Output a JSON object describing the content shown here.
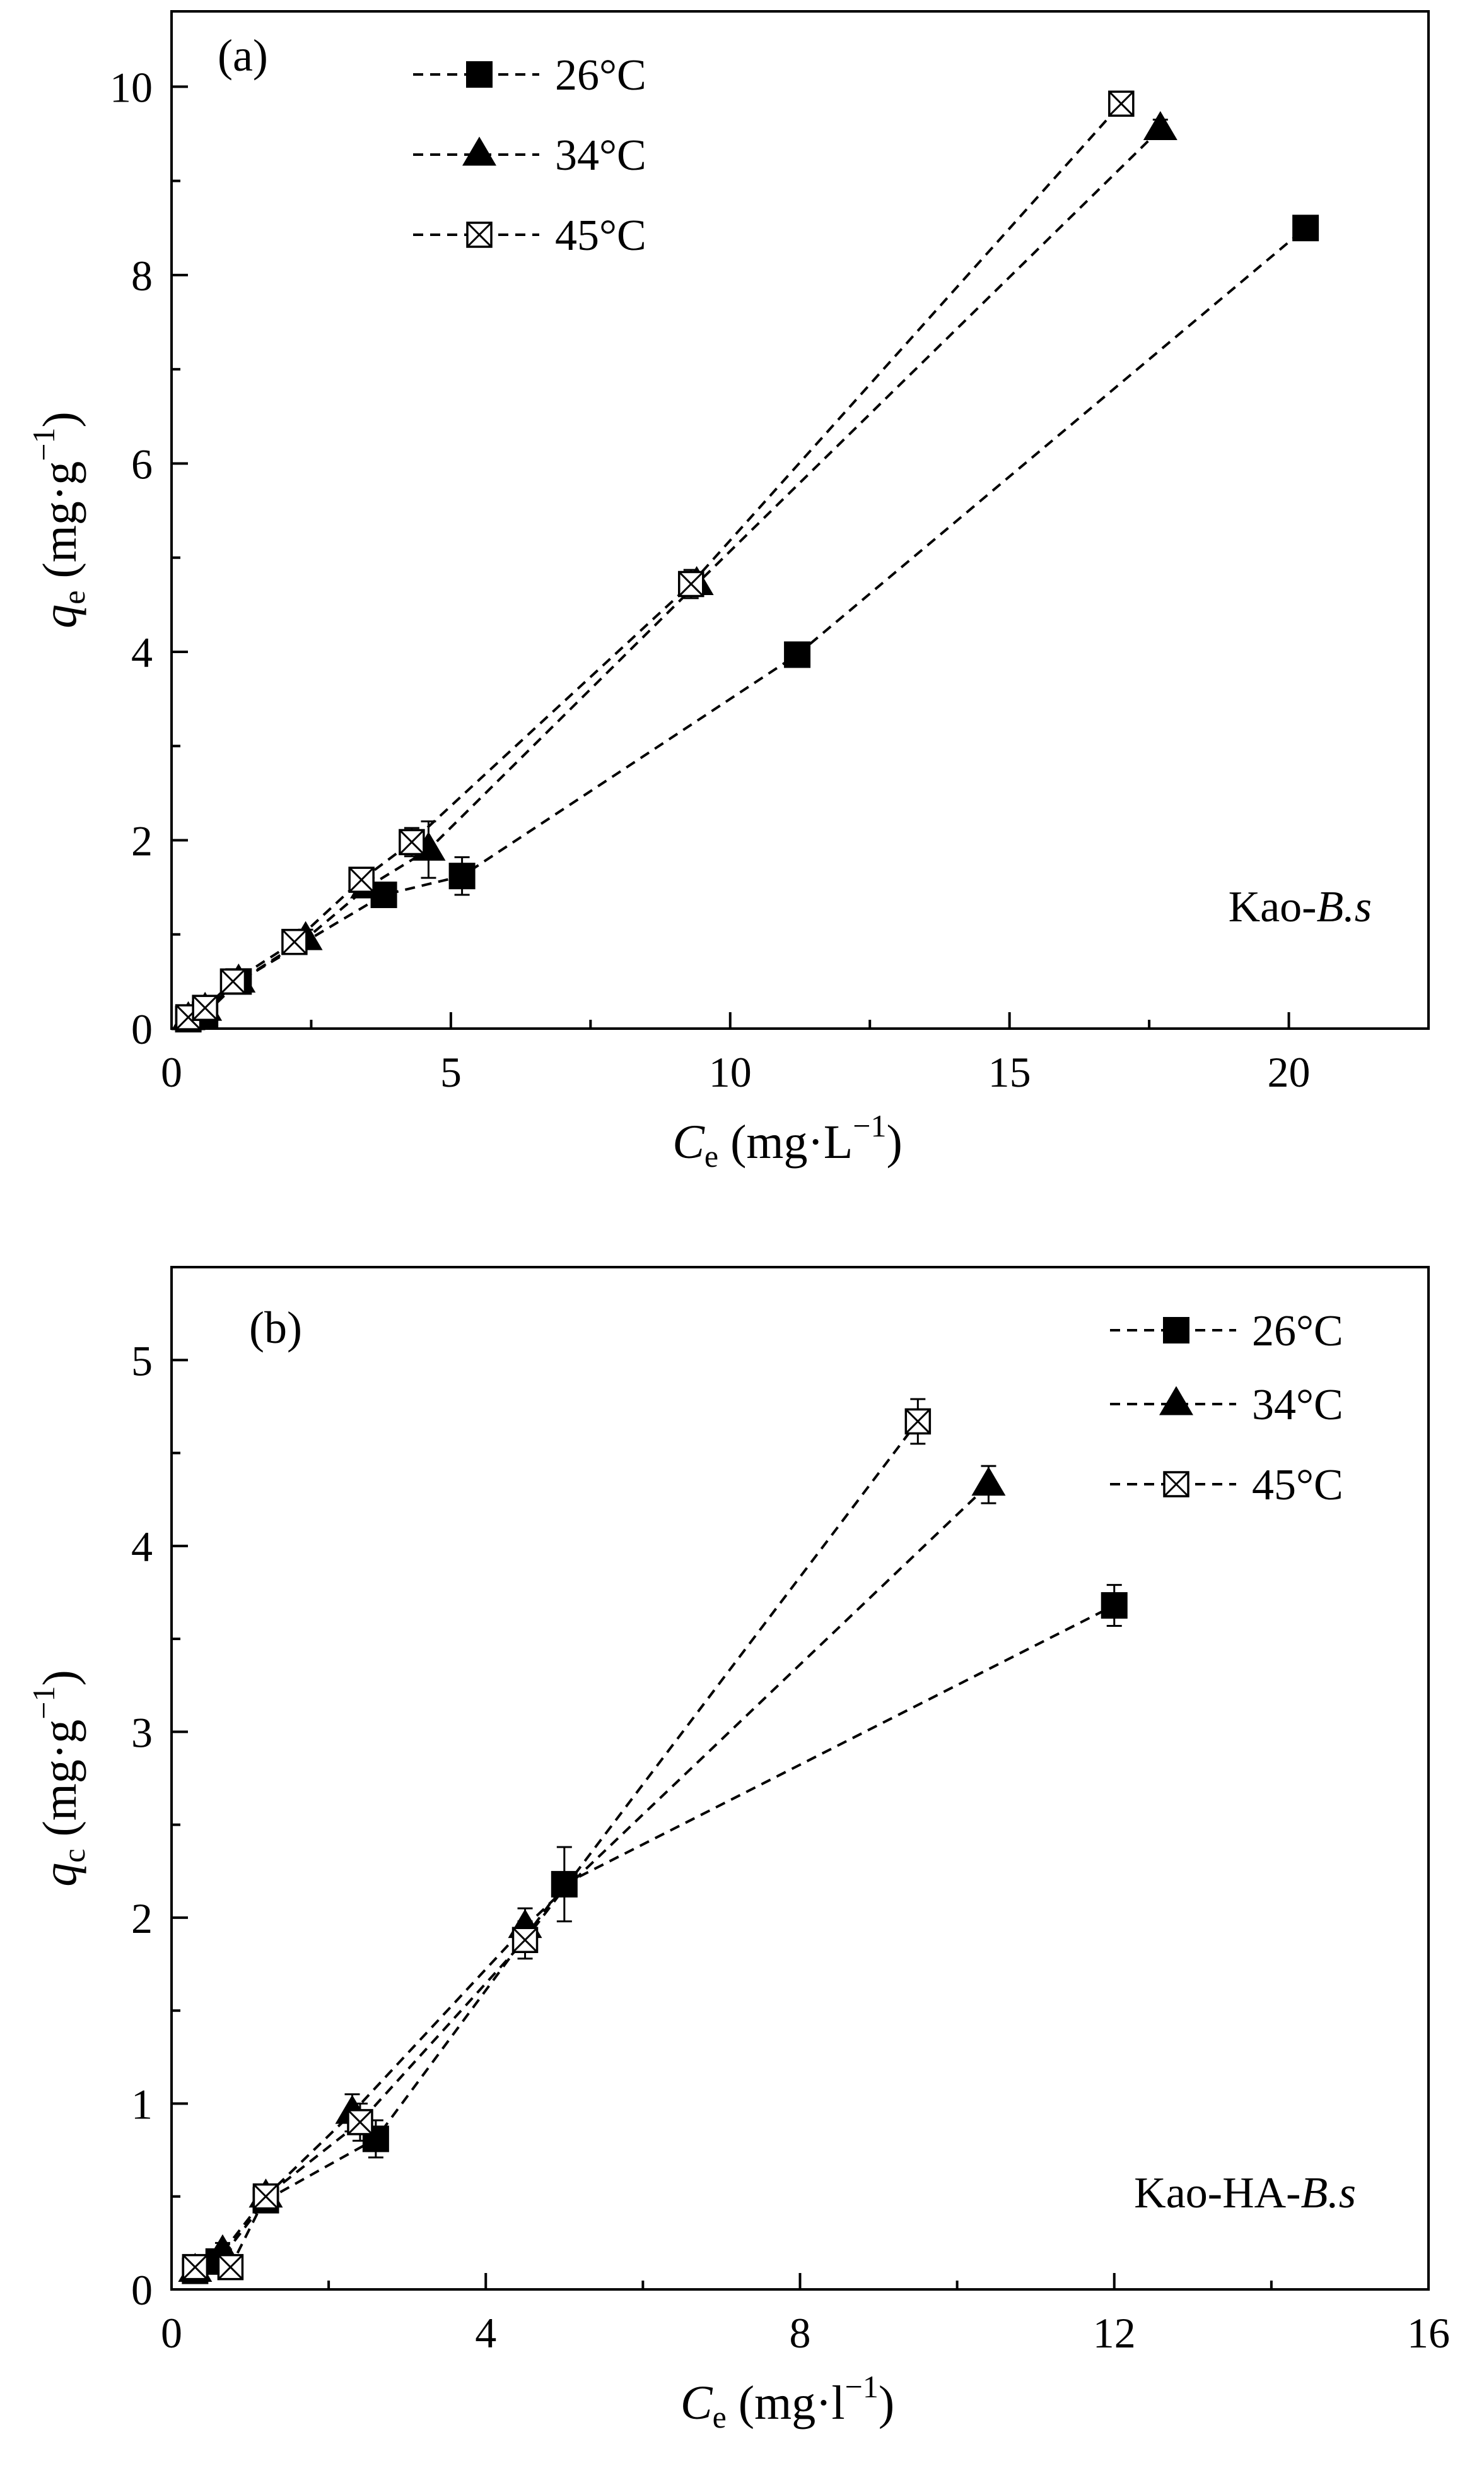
{
  "chart_data": [
    {
      "type": "scatter",
      "panel_label": "(a)",
      "annotation": {
        "prefix": "Kao-",
        "italic": "B.s"
      },
      "xlabel": {
        "var": "C",
        "sub": "e",
        "units": " (mg·L",
        "sup": "−1",
        "close": ")"
      },
      "ylabel": {
        "var": "q",
        "sub": "e",
        "units": " (mg·g",
        "sup": "−1",
        "close": ")"
      },
      "xlim": [
        0,
        22.5
      ],
      "ylim": [
        0,
        10.8
      ],
      "xticks": [
        0,
        5,
        10,
        15,
        20
      ],
      "xtick_labels": [
        "0",
        "5",
        "10",
        "15",
        "20"
      ],
      "yticks": [
        0,
        2,
        4,
        6,
        8,
        10
      ],
      "ytick_labels": [
        "0",
        "2",
        "4",
        "6",
        "8",
        "10"
      ],
      "series": [
        {
          "name": "26°C",
          "marker": "square",
          "x": [
            0.3,
            0.6,
            1.2,
            3.8,
            5.2,
            11.2,
            20.3
          ],
          "y": [
            0.1,
            0.15,
            0.5,
            1.42,
            1.62,
            3.97,
            8.5
          ],
          "err": [
            0.05,
            0.05,
            0.08,
            0.1,
            0.2,
            0.1,
            0.1
          ]
        },
        {
          "name": "34°C",
          "marker": "triangle",
          "x": [
            0.3,
            0.6,
            1.2,
            2.4,
            3.5,
            4.6,
            9.4,
            17.7
          ],
          "y": [
            0.1,
            0.2,
            0.5,
            0.95,
            1.5,
            1.9,
            4.72,
            9.55
          ],
          "err": [
            0.05,
            0.05,
            0.08,
            0.1,
            0.1,
            0.3,
            0.1,
            0.1
          ]
        },
        {
          "name": "45°C",
          "marker": "crossbox",
          "x": [
            0.3,
            0.6,
            1.1,
            2.2,
            3.4,
            4.3,
            9.3,
            17.0
          ],
          "y": [
            0.12,
            0.22,
            0.5,
            0.92,
            1.58,
            1.98,
            4.72,
            9.82
          ],
          "err": [
            0.05,
            0.05,
            0.08,
            0.1,
            0.1,
            0.15,
            0.15,
            0.1
          ]
        }
      ],
      "legend": {
        "position": "top-left",
        "entries": [
          "26°C",
          "34°C",
          "45°C"
        ]
      }
    },
    {
      "type": "scatter",
      "panel_label": "(b)",
      "annotation": {
        "prefix": "Kao-HA-",
        "italic": "B.s"
      },
      "xlabel": {
        "var": "C",
        "sub": "e",
        "units": " (mg·l",
        "sup": "−1",
        "close": ")"
      },
      "ylabel": {
        "var": "q",
        "sub": "c",
        "units": " (mg·g",
        "sup": "−1",
        "close": ")"
      },
      "xlim": [
        0,
        16
      ],
      "ylim": [
        0,
        5.5
      ],
      "xticks": [
        0,
        4,
        8,
        12,
        16
      ],
      "xtick_labels": [
        "0",
        "4",
        "8",
        "12",
        "16"
      ],
      "yticks": [
        0,
        1,
        2,
        3,
        4,
        5
      ],
      "ytick_labels": [
        "0",
        "1",
        "2",
        "3",
        "4",
        "5"
      ],
      "series": [
        {
          "name": "26°C",
          "marker": "square",
          "x": [
            0.3,
            0.6,
            1.2,
            2.6,
            5.0,
            12.0
          ],
          "y": [
            0.1,
            0.15,
            0.48,
            0.81,
            2.18,
            3.68
          ],
          "err": [
            0.05,
            0.05,
            0.06,
            0.1,
            0.2,
            0.11
          ]
        },
        {
          "name": "34°C",
          "marker": "triangle",
          "x": [
            0.3,
            0.65,
            1.2,
            2.3,
            4.5,
            10.4
          ],
          "y": [
            0.1,
            0.2,
            0.5,
            0.95,
            1.95,
            4.33
          ],
          "err": [
            0.05,
            0.05,
            0.06,
            0.1,
            0.1,
            0.1
          ]
        },
        {
          "name": "45°C",
          "marker": "crossbox",
          "x": [
            0.3,
            0.75,
            1.2,
            2.4,
            4.5,
            9.5
          ],
          "y": [
            0.12,
            0.12,
            0.5,
            0.9,
            1.88,
            4.67
          ],
          "err": [
            0.05,
            0.05,
            0.06,
            0.1,
            0.1,
            0.12
          ]
        }
      ],
      "legend": {
        "position": "top-right",
        "entries": [
          "26°C",
          "34°C",
          "45°C"
        ]
      }
    }
  ]
}
